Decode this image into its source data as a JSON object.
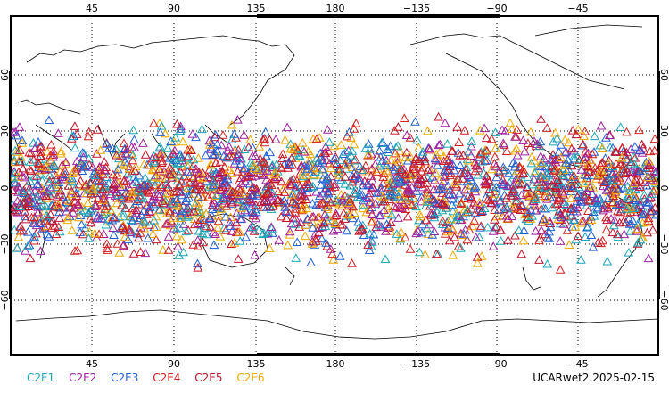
{
  "map": {
    "top_ticks": [
      "45",
      "90",
      "135",
      "180",
      "−135",
      "−90",
      "−45"
    ],
    "bottom_ticks": [
      "45",
      "90",
      "135",
      "180",
      "−135",
      "−90",
      "−45"
    ],
    "lat_ticks": [
      "60",
      "30",
      "0",
      "−30",
      "−60"
    ]
  },
  "legend": {
    "items": [
      {
        "label": "C2E1",
        "color": "#1aa6b7"
      },
      {
        "label": "C2E2",
        "color": "#a020a0"
      },
      {
        "label": "C2E3",
        "color": "#1f5fd6"
      },
      {
        "label": "C2E4",
        "color": "#d22020"
      },
      {
        "label": "C2E5",
        "color": "#c0102a"
      },
      {
        "label": "C2E6",
        "color": "#f0a800"
      }
    ]
  },
  "footer": {
    "label": "UCARwet2.2025-02-15"
  }
}
